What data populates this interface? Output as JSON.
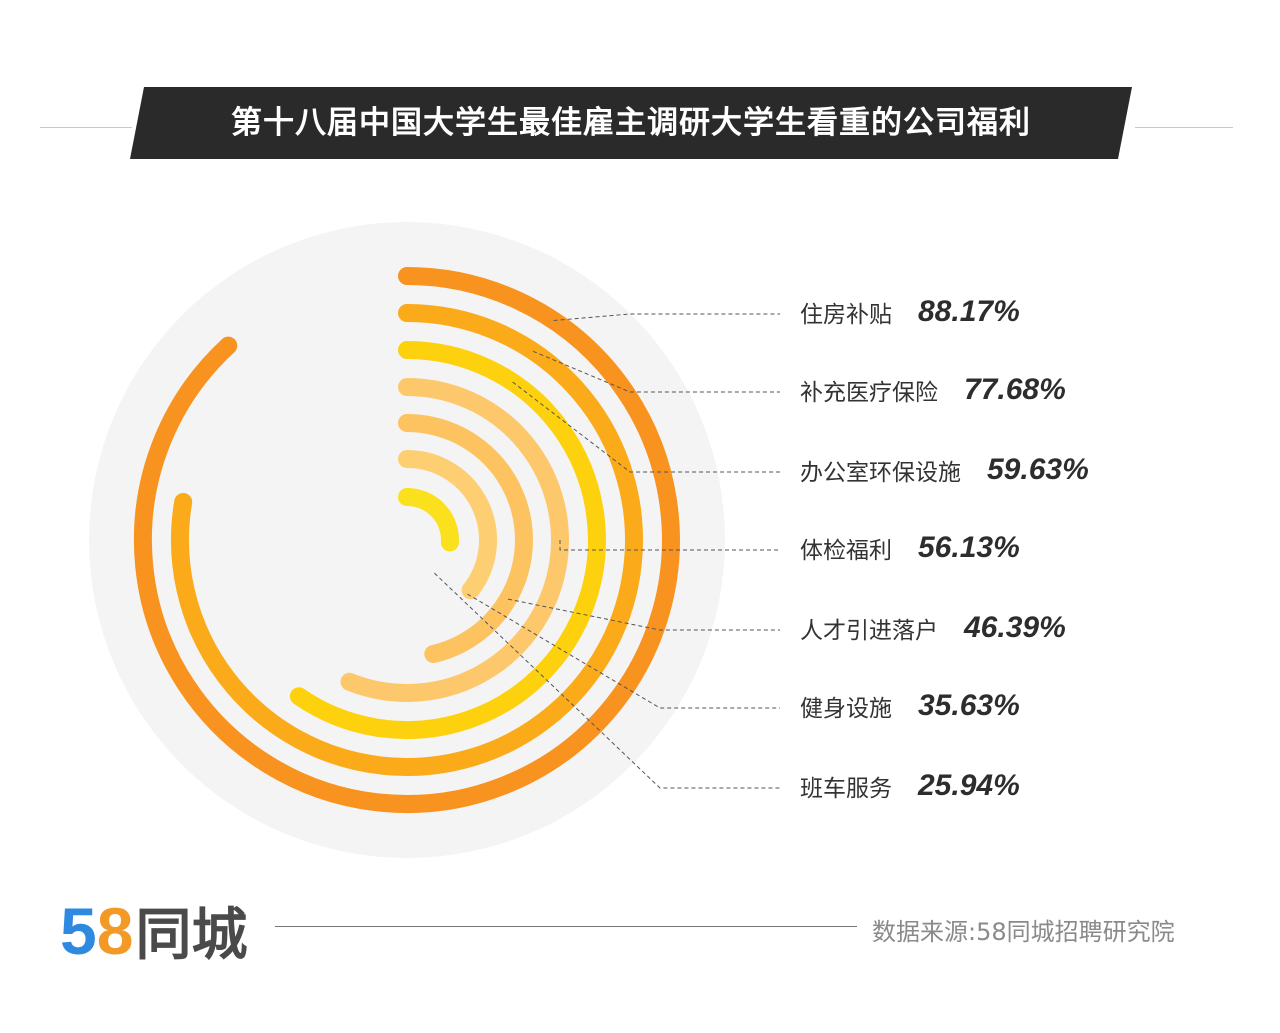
{
  "chart_data": {
    "type": "radial-bar",
    "title": "第十八届中国大学生最佳雇主调研大学生看重的公司福利",
    "unit": "%",
    "max": 100,
    "categories": [
      "住房补贴",
      "补充医疗保险",
      "办公室环保设施",
      "体检福利",
      "人才引进落户",
      "健身设施",
      "班车服务"
    ],
    "values": [
      88.17,
      77.68,
      59.63,
      56.13,
      46.39,
      35.63,
      25.94
    ],
    "value_labels": [
      "88.17%",
      "77.68%",
      "59.63%",
      "56.13%",
      "46.39%",
      "35.63%",
      "25.94%"
    ],
    "colors": [
      "#F7931E",
      "#FBAA1A",
      "#FDD10E",
      "#FDC86C",
      "#FCC360",
      "#FDCF72",
      "#FBE01E"
    ]
  },
  "logo": {
    "digit5": "5",
    "digit8": "8",
    "text": "同城"
  },
  "source": "数据来源:58同城招聘研究院"
}
